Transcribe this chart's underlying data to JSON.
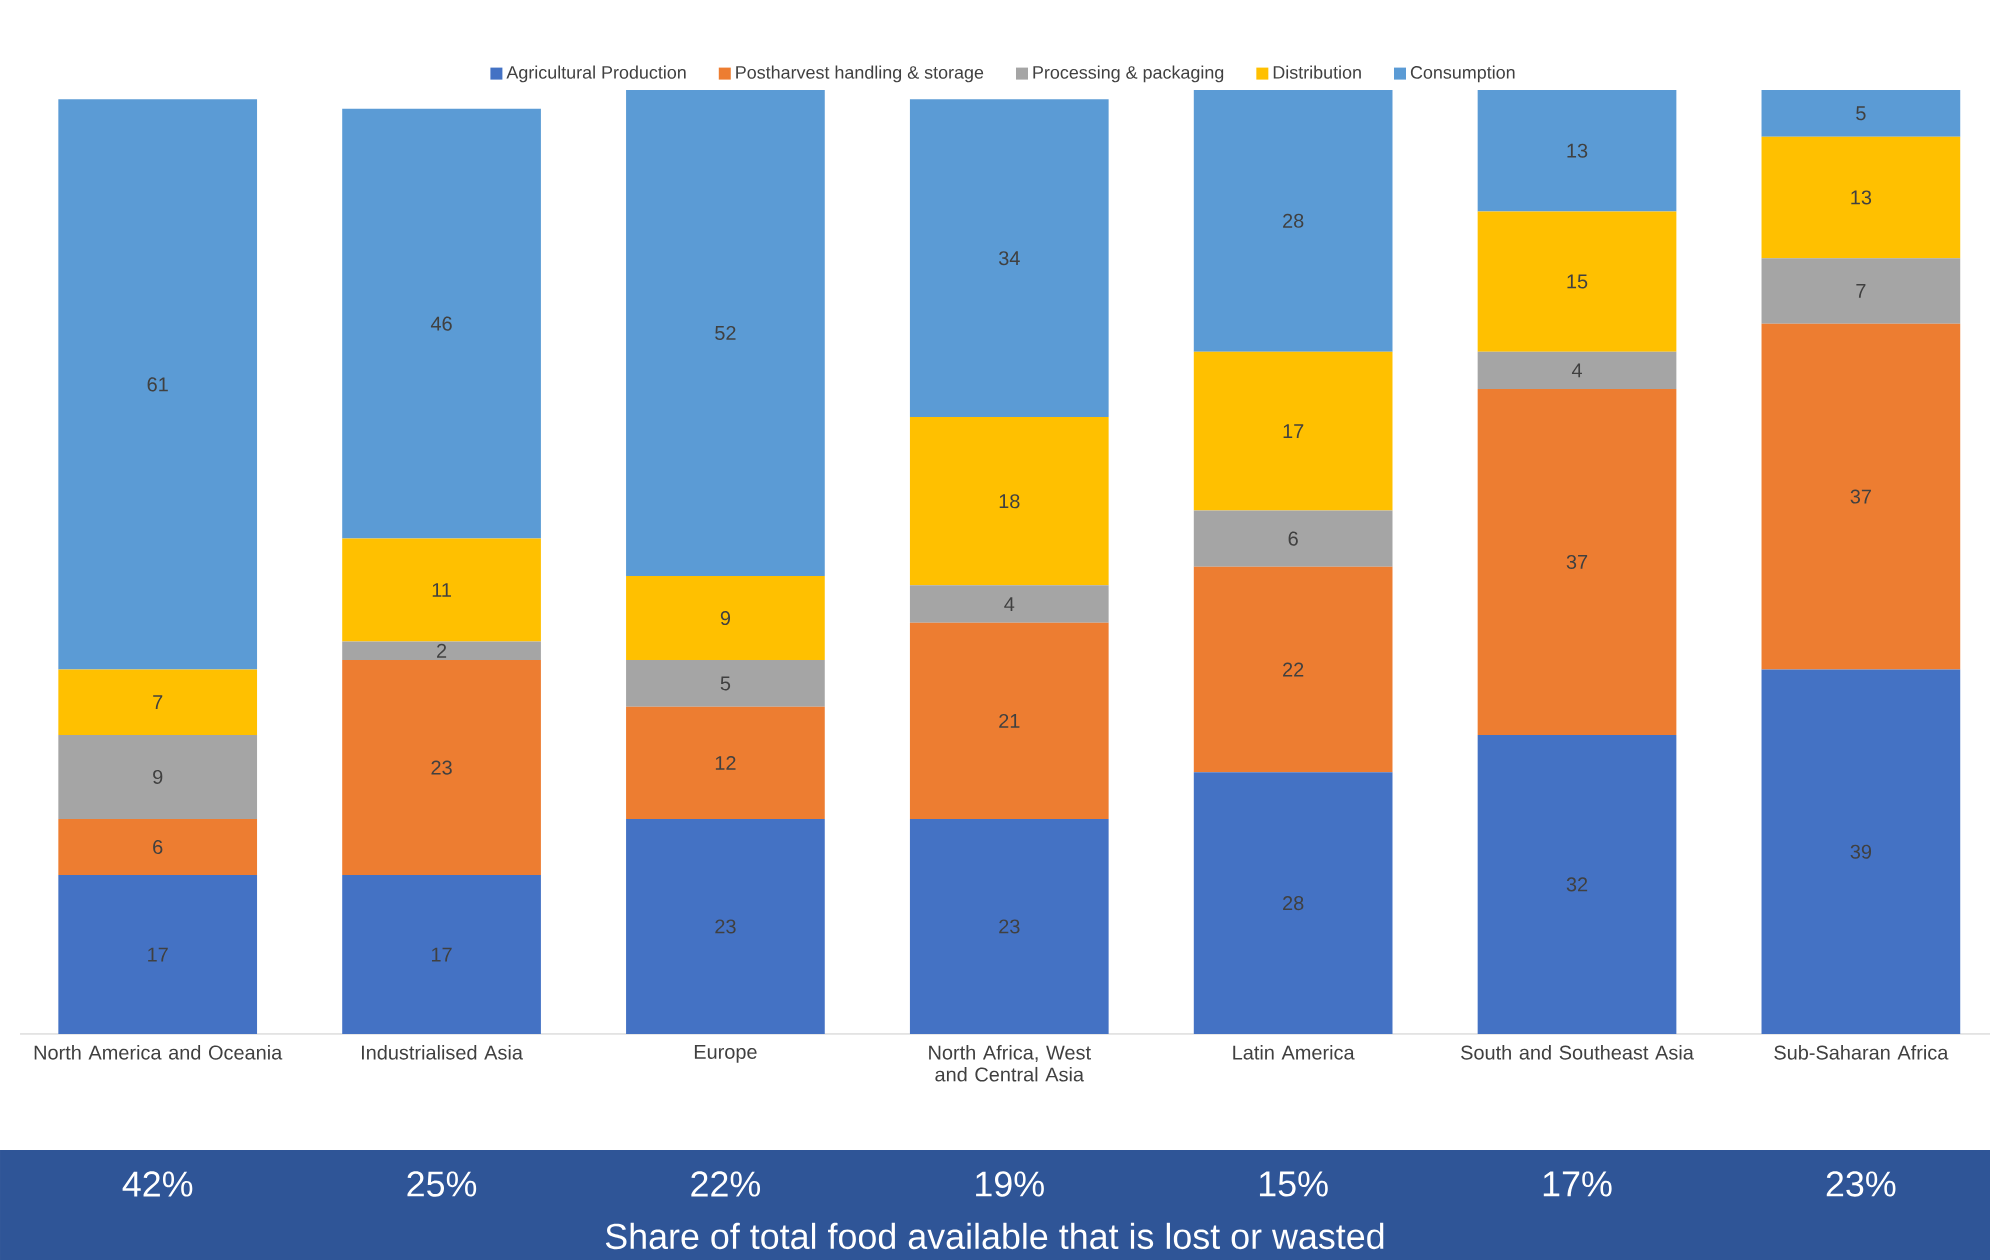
{
  "chart_data": {
    "type": "bar",
    "stacked": true,
    "data_labels": true,
    "legend": "top",
    "categories": [
      "North America and Oceania",
      "Industrialised Asia",
      "Europe",
      "North Africa, West and Central Asia",
      "Latin America",
      "South and Southeast Asia",
      "Sub-Saharan Africa"
    ],
    "series": [
      {
        "name": "Agricultural Production",
        "color": "#4472c4",
        "values": [
          17,
          17,
          23,
          23,
          28,
          32,
          39
        ]
      },
      {
        "name": "Postharvest  handling & storage",
        "color": "#ed7d31",
        "values": [
          6,
          23,
          12,
          21,
          22,
          37,
          37
        ]
      },
      {
        "name": "Processing  & packaging",
        "color": "#a5a5a5",
        "values": [
          9,
          2,
          5,
          4,
          6,
          4,
          7
        ]
      },
      {
        "name": "Distribution",
        "color": "#ffc000",
        "values": [
          7,
          11,
          9,
          18,
          17,
          15,
          13
        ]
      },
      {
        "name": "Consumption",
        "color": "#5b9bd5",
        "values": [
          61,
          46,
          52,
          34,
          28,
          13,
          5
        ]
      }
    ],
    "annotations": [
      "42%",
      "25%",
      "22%",
      "19%",
      "15%",
      "17%",
      "23%",
      "Share of total food available that is lost or wasted"
    ]
  }
}
